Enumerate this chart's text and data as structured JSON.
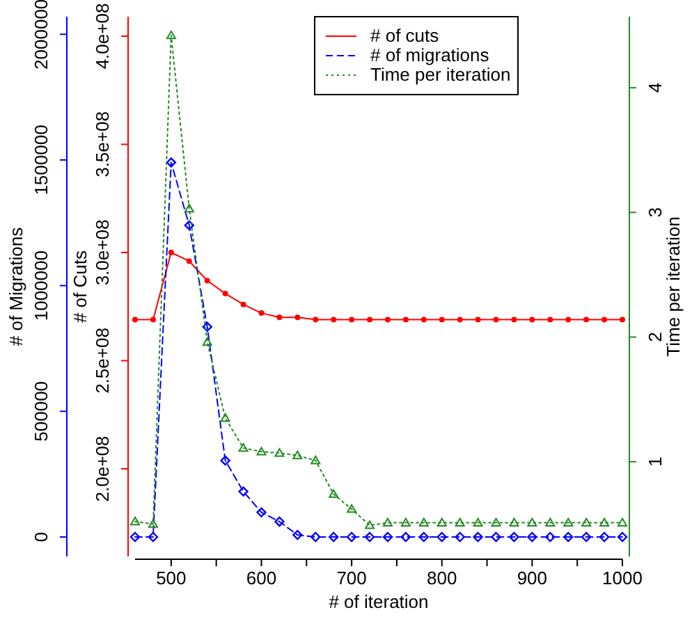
{
  "chart_data": {
    "type": "line",
    "xlabel": "# of iteration",
    "ylabel": "# of Cuts",
    "y2label": "# of Migrations",
    "y3label": "Time per iteration",
    "x": [
      460,
      480,
      500,
      520,
      540,
      560,
      580,
      600,
      620,
      640,
      660,
      680,
      700,
      720,
      740,
      760,
      780,
      800,
      820,
      840,
      860,
      880,
      900,
      920,
      940,
      960,
      980,
      1000
    ],
    "xlim": [
      460,
      1000
    ],
    "xticks": [
      500,
      {
        "value": 550,
        "label": null
      },
      600,
      {
        "value": 650,
        "label": null
      },
      700,
      {
        "value": 750,
        "label": null
      },
      800,
      {
        "value": 850,
        "label": null
      },
      900,
      {
        "value": 950,
        "label": null
      },
      1000
    ],
    "ylim": [
      159500000,
      409000000
    ],
    "yticks": [
      {
        "value": 200000000,
        "label": "2.0e+08"
      },
      {
        "value": 250000000,
        "label": "2.5e+08"
      },
      {
        "value": 300000000,
        "label": "3.0e+08"
      },
      {
        "value": 350000000,
        "label": "3.5e+08"
      },
      {
        "value": 400000000,
        "label": "4.0e+08"
      }
    ],
    "y2lim": [
      -77500,
      2070000
    ],
    "y2ticks": [
      0,
      500000,
      1000000,
      1500000,
      2000000
    ],
    "y3lim": [
      0.24,
      4.57
    ],
    "y3ticks": [
      1,
      2,
      3,
      4
    ],
    "legend": "top",
    "series": [
      {
        "name": "# of cuts",
        "color": "#ff0000",
        "axis": "y",
        "marker": "circle",
        "line_style": "solid",
        "values": [
          269000000,
          269000000,
          300000000,
          296000000,
          287000000,
          281000000,
          276000000,
          272000000,
          270000000,
          270000000,
          269000000,
          269000000,
          269000000,
          269000000,
          269000000,
          269000000,
          269000000,
          269000000,
          269000000,
          269000000,
          269000000,
          269000000,
          269000000,
          269000000,
          269000000,
          269000000,
          269000000,
          269000000
        ]
      },
      {
        "name": "# of migrations",
        "color": "#0000ff",
        "axis": "y2",
        "marker": "diamond",
        "line_style": "dashed",
        "values": [
          0,
          0,
          1490000,
          1240000,
          836000,
          304000,
          181000,
          98000,
          61000,
          8000,
          0,
          0,
          0,
          0,
          0,
          0,
          0,
          0,
          0,
          0,
          0,
          0,
          0,
          0,
          0,
          0,
          0,
          0
        ]
      },
      {
        "name": "Time per iteration",
        "color": "#228b22",
        "axis": "y3",
        "marker": "triangle",
        "line_style": "dotted",
        "values": [
          0.52,
          0.5,
          4.42,
          3.03,
          1.96,
          1.35,
          1.11,
          1.08,
          1.07,
          1.05,
          1.01,
          0.74,
          0.62,
          0.49,
          0.51,
          0.51,
          0.51,
          0.51,
          0.51,
          0.51,
          0.51,
          0.51,
          0.51,
          0.51,
          0.51,
          0.51,
          0.51,
          0.51
        ]
      }
    ]
  }
}
